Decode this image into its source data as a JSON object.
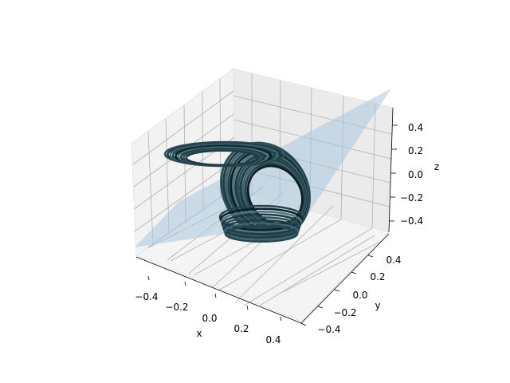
{
  "chart_data": {
    "type": "3d-line-with-plane",
    "title": "",
    "axes": {
      "x": {
        "label": "x",
        "range": [
          -0.5,
          0.5
        ],
        "ticks": [
          "−0.4",
          "−0.2",
          "0.0",
          "0.2",
          "0.4"
        ]
      },
      "y": {
        "label": "y",
        "range": [
          -0.5,
          0.5
        ],
        "ticks": [
          "−0.4",
          "−0.2",
          "0.0",
          "0.2",
          "0.4"
        ]
      },
      "z": {
        "label": "z",
        "range": [
          -0.5,
          0.5
        ],
        "ticks": [
          "−0.4",
          "−0.2",
          "0.0",
          "0.2",
          "0.4"
        ]
      }
    },
    "grid": true,
    "series": [
      {
        "kind": "trajectory",
        "color": "#2e4f5a",
        "shape": "double-scroll attractor",
        "lobes": [
          {
            "center": [
              0.14,
              0.12,
              0.05
            ],
            "semi_axes": [
              0.13,
              0.1
            ],
            "loops": 12
          },
          {
            "center": [
              -0.18,
              0.05,
              0.22
            ],
            "semi_axes": [
              0.17,
              0.07
            ],
            "loops": 9
          }
        ]
      },
      {
        "kind": "plane",
        "color": "#aac6df",
        "opacity": 0.55,
        "corners": [
          [
            -0.5,
            -0.5,
            -0.5
          ],
          [
            0.5,
            0.5,
            0.5
          ]
        ]
      }
    ]
  }
}
